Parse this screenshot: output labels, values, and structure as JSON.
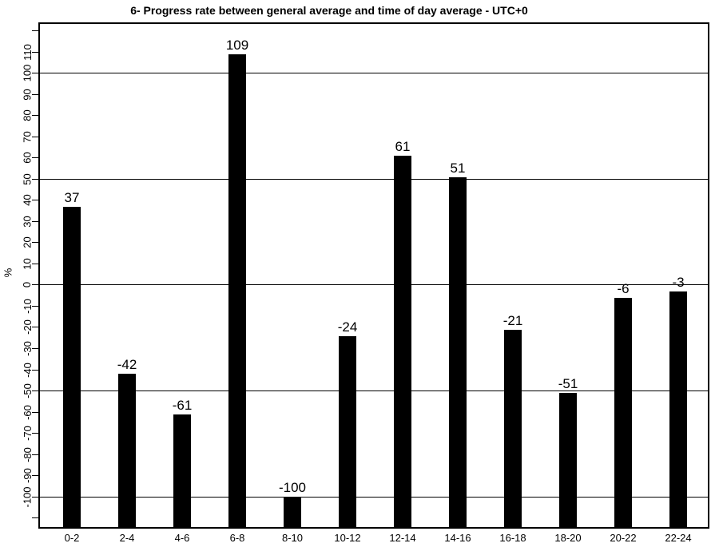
{
  "chart_data": {
    "type": "bar",
    "title": "6- Progress rate between general average and time of day average - UTC+0",
    "xlabel": "",
    "ylabel": "%",
    "categories": [
      "0-2",
      "2-4",
      "4-6",
      "6-8",
      "8-10",
      "10-12",
      "12-14",
      "14-16",
      "16-18",
      "18-20",
      "20-22",
      "22-24"
    ],
    "values": [
      37,
      -42,
      -61,
      109,
      -100,
      -24,
      61,
      51,
      -21,
      -51,
      -6,
      -3
    ],
    "bar_value_labels": [
      "37",
      "-42",
      "-61",
      "109",
      "-100",
      "-24",
      "61",
      "51",
      "-21",
      "-51",
      "-6",
      "-3"
    ],
    "ylim": [
      -115,
      124
    ],
    "ytick_labels": [
      "-100",
      "-90",
      "-80",
      "-70",
      "-60",
      "-50",
      "-40",
      "-30",
      "-20",
      "-10",
      "0",
      "10",
      "20",
      "30",
      "40",
      "50",
      "60",
      "70",
      "80",
      "90",
      "100",
      "110"
    ],
    "yticks_unlabeled": [
      -110,
      120
    ],
    "gridline_values": [
      -100,
      -50,
      0,
      50,
      100
    ],
    "grid": "horizontal-only",
    "legend": "none",
    "bars_baseline": "plot_bottom",
    "bar_color": "#000000",
    "background_color": "#ffffff",
    "text_color": "#000000"
  }
}
